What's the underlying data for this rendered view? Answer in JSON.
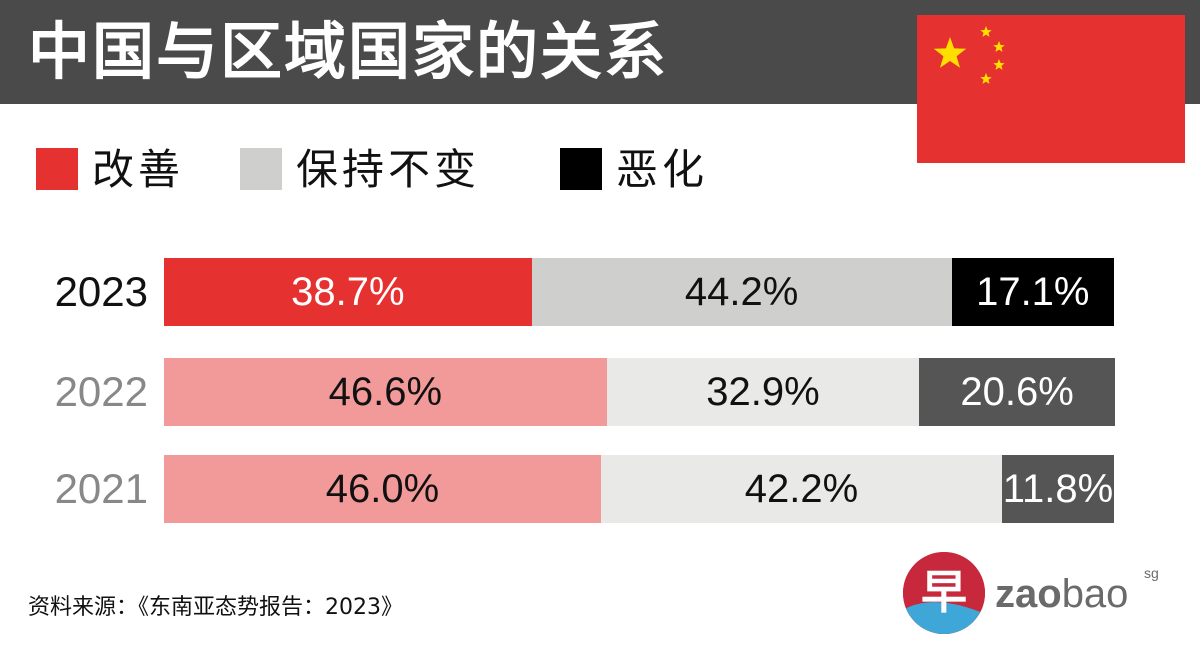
{
  "title": "中国与区域国家的关系",
  "legend": [
    {
      "label": "改善",
      "color": "#e5312f"
    },
    {
      "label": "保持不变",
      "color": "#cfcfcd"
    },
    {
      "label": "恶化",
      "color": "#000000"
    }
  ],
  "chart_data": {
    "type": "bar",
    "stacked": true,
    "orientation": "horizontal",
    "title": "中国与区域国家的关系",
    "categories": [
      "2023",
      "2022",
      "2021"
    ],
    "series": [
      {
        "name": "改善",
        "values": [
          38.7,
          46.6,
          46.0
        ],
        "labels": [
          "38.7%",
          "46.6%",
          "46.0%"
        ],
        "colors": [
          "#e5312f",
          "#f29a9a",
          "#f29a9a"
        ]
      },
      {
        "name": "保持不变",
        "values": [
          44.2,
          32.9,
          42.2
        ],
        "labels": [
          "44.2%",
          "32.9%",
          "42.2%"
        ],
        "colors": [
          "#cfcfcd",
          "#e9e9e7",
          "#e9e9e7"
        ]
      },
      {
        "name": "恶化",
        "values": [
          17.1,
          20.6,
          11.8
        ],
        "labels": [
          "17.1%",
          "20.6%",
          "11.8%"
        ],
        "colors": [
          "#000000",
          "#555555",
          "#555555"
        ]
      }
    ],
    "year_colors": [
      "#111111",
      "#888888",
      "#888888"
    ],
    "label_colors": [
      [
        "#ffffff",
        "#111111",
        "#ffffff"
      ],
      [
        "#111111",
        "#111111",
        "#ffffff"
      ],
      [
        "#111111",
        "#111111",
        "#ffffff"
      ]
    ],
    "xlim": [
      0,
      100
    ]
  },
  "source": "资料来源：《东南亚态势报告：2023》",
  "logo": {
    "glyph": "早",
    "wordmark_bold": "zao",
    "wordmark_light": "bao",
    "suffix": "sg"
  },
  "flag": {
    "name": "china-flag",
    "color": "#e5312f",
    "star_color": "#ffde00"
  }
}
